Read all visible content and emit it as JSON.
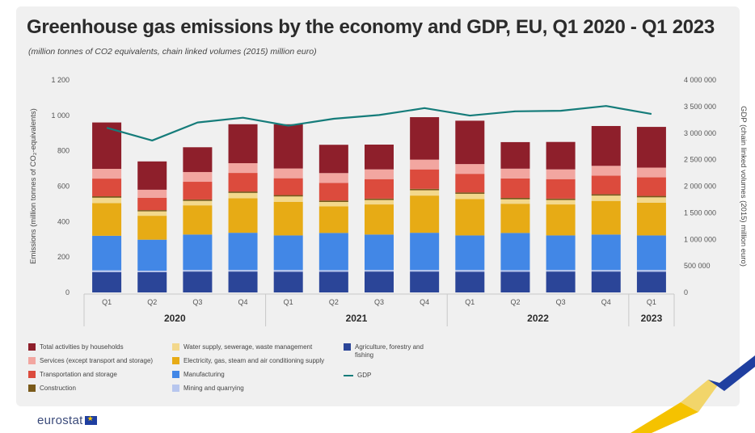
{
  "title": "Greenhouse gas emissions by the economy and GDP, EU, Q1 2020 - Q1 2023",
  "subtitle": "(million tonnes of CO2 equivalents, chain linked volumes (2015) million euro)",
  "brand": "eurostat",
  "chart_data": {
    "type": "bar",
    "stacked": true,
    "categories": [
      "Q1",
      "Q2",
      "Q3",
      "Q4",
      "Q1",
      "Q2",
      "Q3",
      "Q4",
      "Q1",
      "Q2",
      "Q3",
      "Q4",
      "Q1"
    ],
    "years": [
      {
        "label": "2020",
        "span": [
          0,
          3
        ]
      },
      {
        "label": "2021",
        "span": [
          4,
          7
        ]
      },
      {
        "label": "2022",
        "span": [
          8,
          11
        ]
      },
      {
        "label": "2023",
        "span": [
          12,
          12
        ]
      }
    ],
    "ylabel": "Emissions (million tonnes of CO₂-equivalents)",
    "y2label": "GDP (chain linked volumes (2015) million euro)",
    "ylim": [
      0,
      1200
    ],
    "yticks": [
      "0",
      "200",
      "400",
      "600",
      "800",
      "1 000",
      "1 200"
    ],
    "y2lim": [
      0,
      4000000
    ],
    "y2ticks": [
      "0",
      "500 000",
      "1 000 000",
      "1 500 000",
      "2 000 000",
      "2 500 000",
      "3 000 000",
      "3 500 000",
      "4 000 000"
    ],
    "series": [
      {
        "name": "Agriculture, forestry and fishing",
        "color": "#2b4598",
        "values": [
          115,
          115,
          118,
          118,
          117,
          117,
          118,
          118,
          117,
          117,
          118,
          118,
          117
        ]
      },
      {
        "name": "Mining and quarrying",
        "color": "#b7c6ee",
        "values": [
          10,
          8,
          9,
          9,
          10,
          9,
          9,
          9,
          10,
          9,
          9,
          9,
          10
        ]
      },
      {
        "name": "Manufacturing",
        "color": "#4287e6",
        "values": [
          195,
          175,
          200,
          210,
          195,
          210,
          200,
          210,
          195,
          210,
          195,
          200,
          195
        ]
      },
      {
        "name": "Electricity, gas, steam and air conditioning supply",
        "color": "#e7ab15",
        "values": [
          185,
          135,
          165,
          195,
          190,
          150,
          170,
          210,
          205,
          165,
          175,
          190,
          185
        ]
      },
      {
        "name": "Water supply, sewerage, waste management",
        "color": "#f3d88c",
        "values": [
          30,
          25,
          25,
          30,
          30,
          25,
          25,
          30,
          30,
          25,
          25,
          30,
          30
        ]
      },
      {
        "name": "Construction",
        "color": "#7a5a1a",
        "values": [
          8,
          7,
          8,
          8,
          8,
          8,
          8,
          8,
          8,
          8,
          8,
          8,
          8
        ]
      },
      {
        "name": "Transportation and storage",
        "color": "#dc4b3d",
        "values": [
          100,
          70,
          100,
          105,
          95,
          100,
          110,
          110,
          105,
          110,
          110,
          105,
          105
        ]
      },
      {
        "name": "Services (except transport and storage)",
        "color": "#f2a6a0",
        "values": [
          55,
          45,
          55,
          55,
          55,
          55,
          55,
          55,
          55,
          55,
          55,
          55,
          55
        ]
      },
      {
        "name": "Total activities by households",
        "color": "#8e1f2b",
        "values": [
          262,
          160,
          140,
          220,
          250,
          160,
          140,
          240,
          245,
          150,
          155,
          225,
          230
        ]
      }
    ],
    "line": {
      "name": "GDP",
      "color": "#157c7a",
      "values": [
        3100000,
        2860000,
        3200000,
        3290000,
        3140000,
        3270000,
        3340000,
        3470000,
        3330000,
        3410000,
        3420000,
        3510000,
        3360000
      ]
    },
    "legend_placement": "bottom",
    "legend_order": [
      "Total activities by households",
      "Services (except transport and storage)",
      "Transportation and storage",
      "Construction",
      "Water supply, sewerage, waste management",
      "Electricity, gas, steam and air conditioning supply",
      "Manufacturing",
      "Mining and quarrying",
      "Agriculture, forestry and fishing",
      "GDP"
    ]
  }
}
